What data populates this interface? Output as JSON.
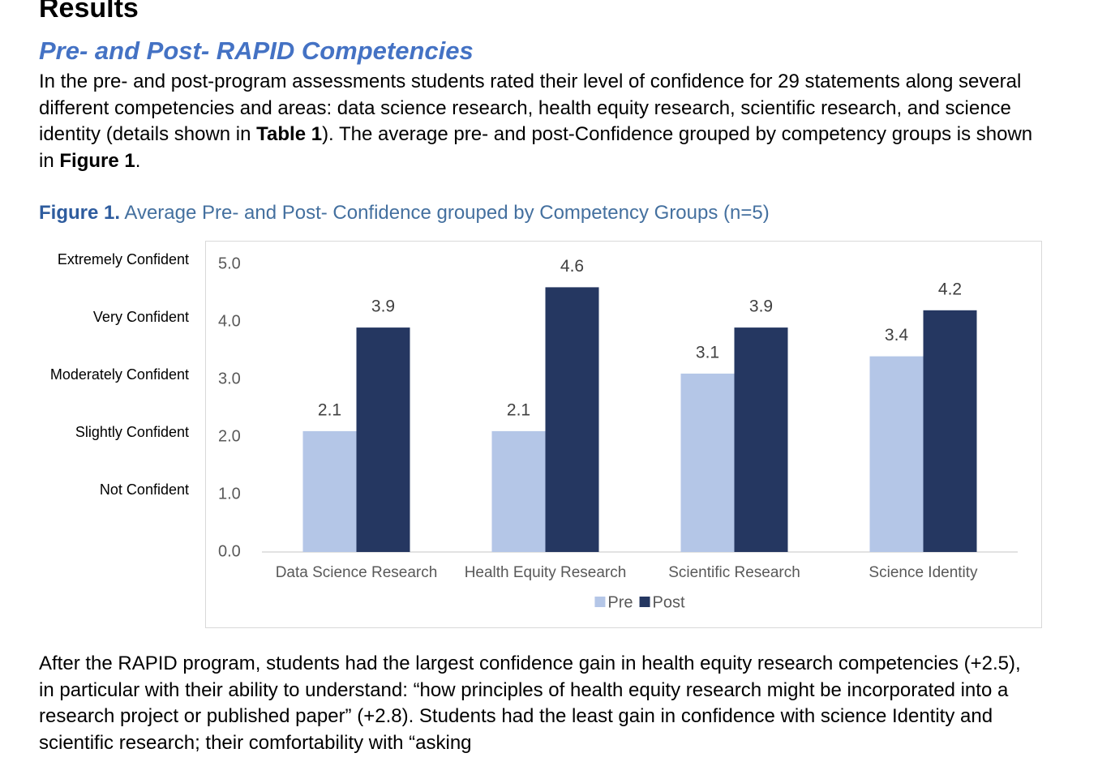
{
  "heading": "Results",
  "subheading": "Pre- and Post- RAPID Competencies",
  "intro": [
    {
      "text": "In the pre- and post-program assessments students rated their level of confidence for 29 statements along several different competencies and areas: data science research, health equity research, scientific research, and science identity (details shown in "
    },
    {
      "text": "Table 1",
      "bold": true
    },
    {
      "text": "). The average pre- and post-Confidence grouped by competency groups is shown in "
    },
    {
      "text": "Figure 1",
      "bold": true
    },
    {
      "text": "."
    }
  ],
  "figure_caption": {
    "label": "Figure 1.",
    "text": "Average Pre- and Post- Confidence grouped by Competency Groups (n=5)"
  },
  "chart_data": {
    "type": "bar",
    "categories": [
      "Data Science Research",
      "Health Equity Research",
      "Scientific Research",
      "Science Identity"
    ],
    "series": [
      {
        "name": "Pre",
        "color": "#b4c6e7",
        "values": [
          2.1,
          2.1,
          3.1,
          3.4
        ]
      },
      {
        "name": "Post",
        "color": "#253761",
        "values": [
          3.9,
          4.6,
          3.9,
          4.2
        ]
      }
    ],
    "ylim": [
      0,
      5
    ],
    "yticks": [
      {
        "value": 0,
        "label": "0.0"
      },
      {
        "value": 1,
        "label": "1.0"
      },
      {
        "value": 2,
        "label": "2.0"
      },
      {
        "value": 3,
        "label": "3.0"
      },
      {
        "value": 4,
        "label": "4.0"
      },
      {
        "value": 5,
        "label": "5.0"
      }
    ],
    "scale_labels": [
      {
        "value": 5,
        "label": "Extremely Confident"
      },
      {
        "value": 4,
        "label": "Very Confident"
      },
      {
        "value": 3,
        "label": "Moderately Confident"
      },
      {
        "value": 2,
        "label": "Slightly Confident"
      },
      {
        "value": 1,
        "label": "Not Confident"
      }
    ],
    "grid": false,
    "legend": "bottom"
  },
  "closing": "After the RAPID program, students had the largest confidence gain in health equity research competencies (+2.5), in particular with their ability to understand: “how principles of health equity research might be incorporated into a research project or published paper” (+2.8). Students had the least gain in confidence with science Identity and scientific research; their comfortability with “asking"
}
